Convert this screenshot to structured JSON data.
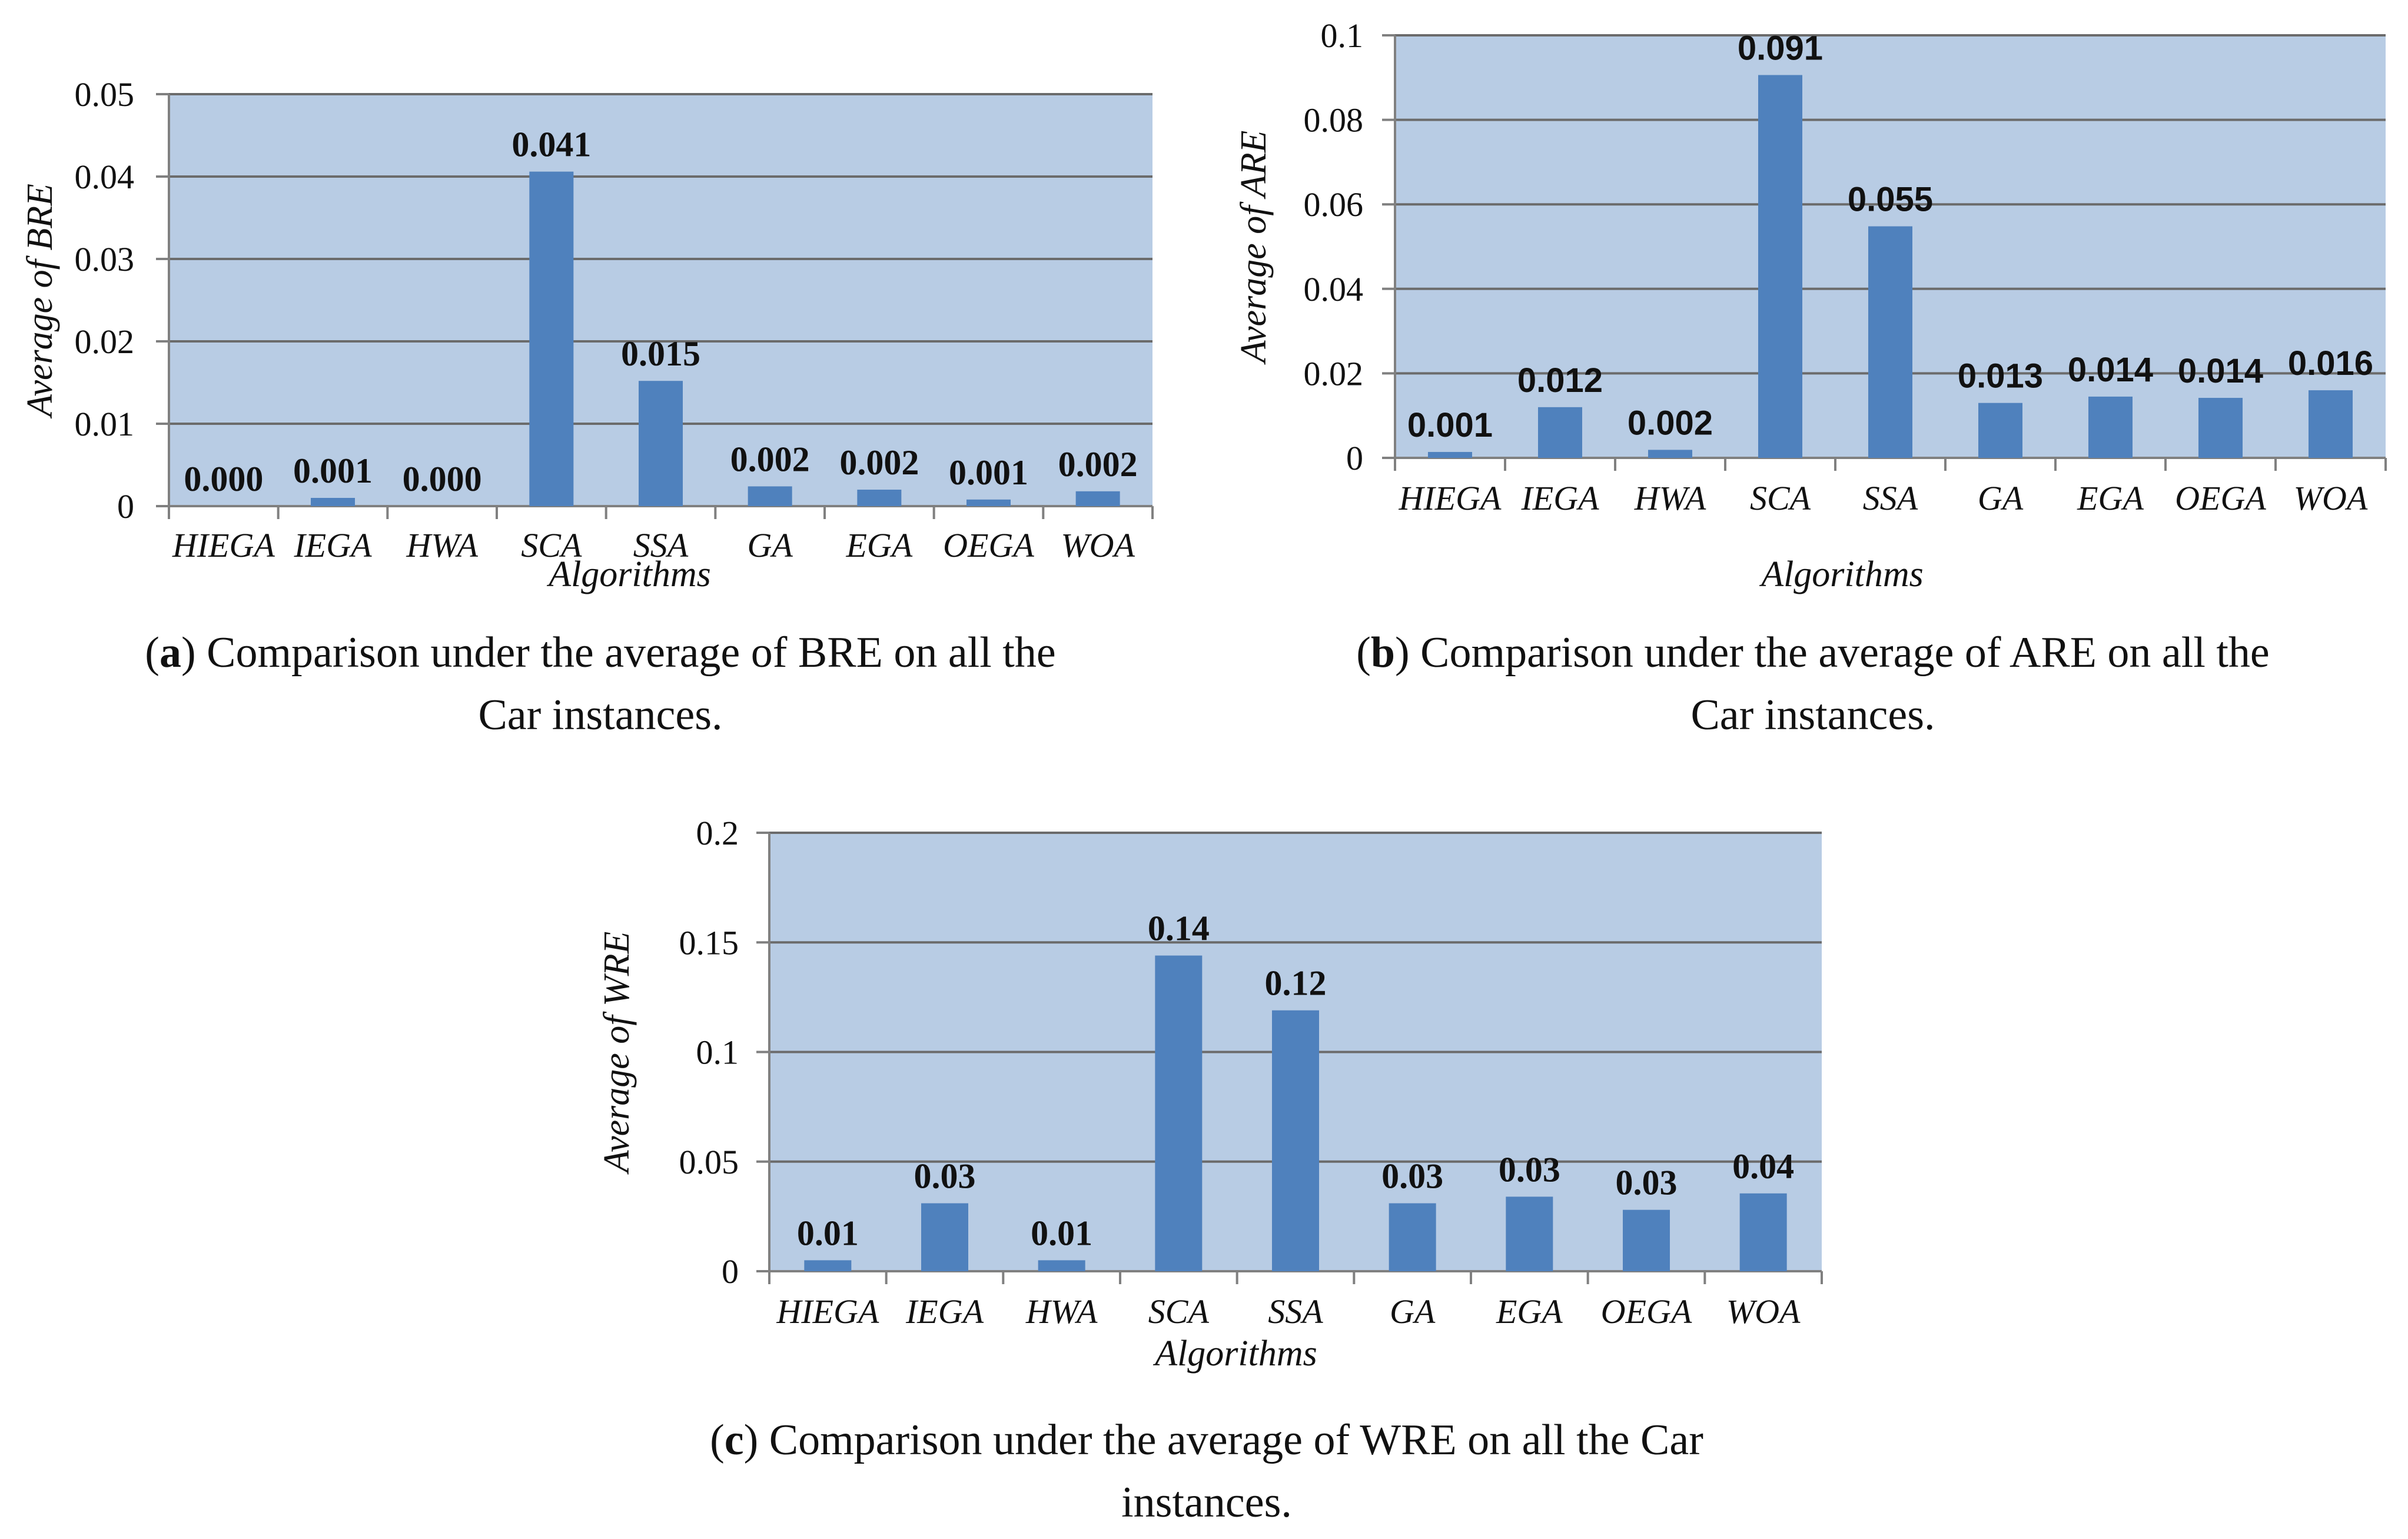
{
  "chart_data": [
    {
      "id": "a",
      "type": "bar",
      "title": "",
      "xlabel": "Algorithms",
      "ylabel": "Average of BRE",
      "categories": [
        "HIEGA",
        "IEGA",
        "HWA",
        "SCA",
        "SSA",
        "GA",
        "EGA",
        "OEGA",
        "WOA"
      ],
      "values": [
        0.0,
        0.001,
        0.0,
        0.0406,
        0.0152,
        0.0024,
        0.002,
        0.0008,
        0.0018
      ],
      "data_labels": [
        "0.000",
        "0.001",
        "0.000",
        "0.041",
        "0.015",
        "0.002",
        "0.002",
        "0.001",
        "0.002"
      ],
      "ylim": [
        0,
        0.05
      ],
      "yticks": [
        "0",
        "0.01",
        "0.02",
        "0.03",
        "0.04",
        "0.05"
      ],
      "grid": true,
      "legend": "none"
    },
    {
      "id": "b",
      "type": "bar",
      "title": "",
      "xlabel": "Algorithms",
      "ylabel": "Average of ARE",
      "categories": [
        "HIEGA",
        "IEGA",
        "HWA",
        "SCA",
        "SSA",
        "GA",
        "EGA",
        "OEGA",
        "WOA"
      ],
      "values": [
        0.0014,
        0.012,
        0.0019,
        0.0906,
        0.0548,
        0.013,
        0.0145,
        0.0142,
        0.016
      ],
      "data_labels": [
        "0.001",
        "0.012",
        "0.002",
        "0.091",
        "0.055",
        "0.013",
        "0.014",
        "0.014",
        "0.016"
      ],
      "ylim": [
        0,
        0.1
      ],
      "yticks": [
        "0",
        "0.02",
        "0.04",
        "0.06",
        "0.08",
        "0.1"
      ],
      "grid": true,
      "legend": "none"
    },
    {
      "id": "c",
      "type": "bar",
      "title": "",
      "xlabel": "Algorithms",
      "ylabel": "Average of WRE",
      "categories": [
        "HIEGA",
        "IEGA",
        "HWA",
        "SCA",
        "SSA",
        "GA",
        "EGA",
        "OEGA",
        "WOA"
      ],
      "values": [
        0.005,
        0.031,
        0.005,
        0.144,
        0.119,
        0.031,
        0.034,
        0.028,
        0.0355
      ],
      "data_labels": [
        "0.01",
        "0.03",
        "0.01",
        "0.14",
        "0.12",
        "0.03",
        "0.03",
        "0.03",
        "0.04"
      ],
      "ylim": [
        0,
        0.2
      ],
      "yticks": [
        "0",
        "0.05",
        "0.1",
        "0.15",
        "0.2"
      ],
      "grid": true,
      "legend": "none"
    }
  ],
  "captions": {
    "a": {
      "label": "a",
      "line1": ") Comparison under the average of BRE on all the",
      "line2": "Car instances."
    },
    "b": {
      "label": "b",
      "line1": ") Comparison under the average of ARE on all the",
      "line2": "Car instances."
    },
    "c": {
      "label": "c",
      "line1": ") Comparison under the average of WRE on all the Car",
      "line2": "instances."
    }
  }
}
